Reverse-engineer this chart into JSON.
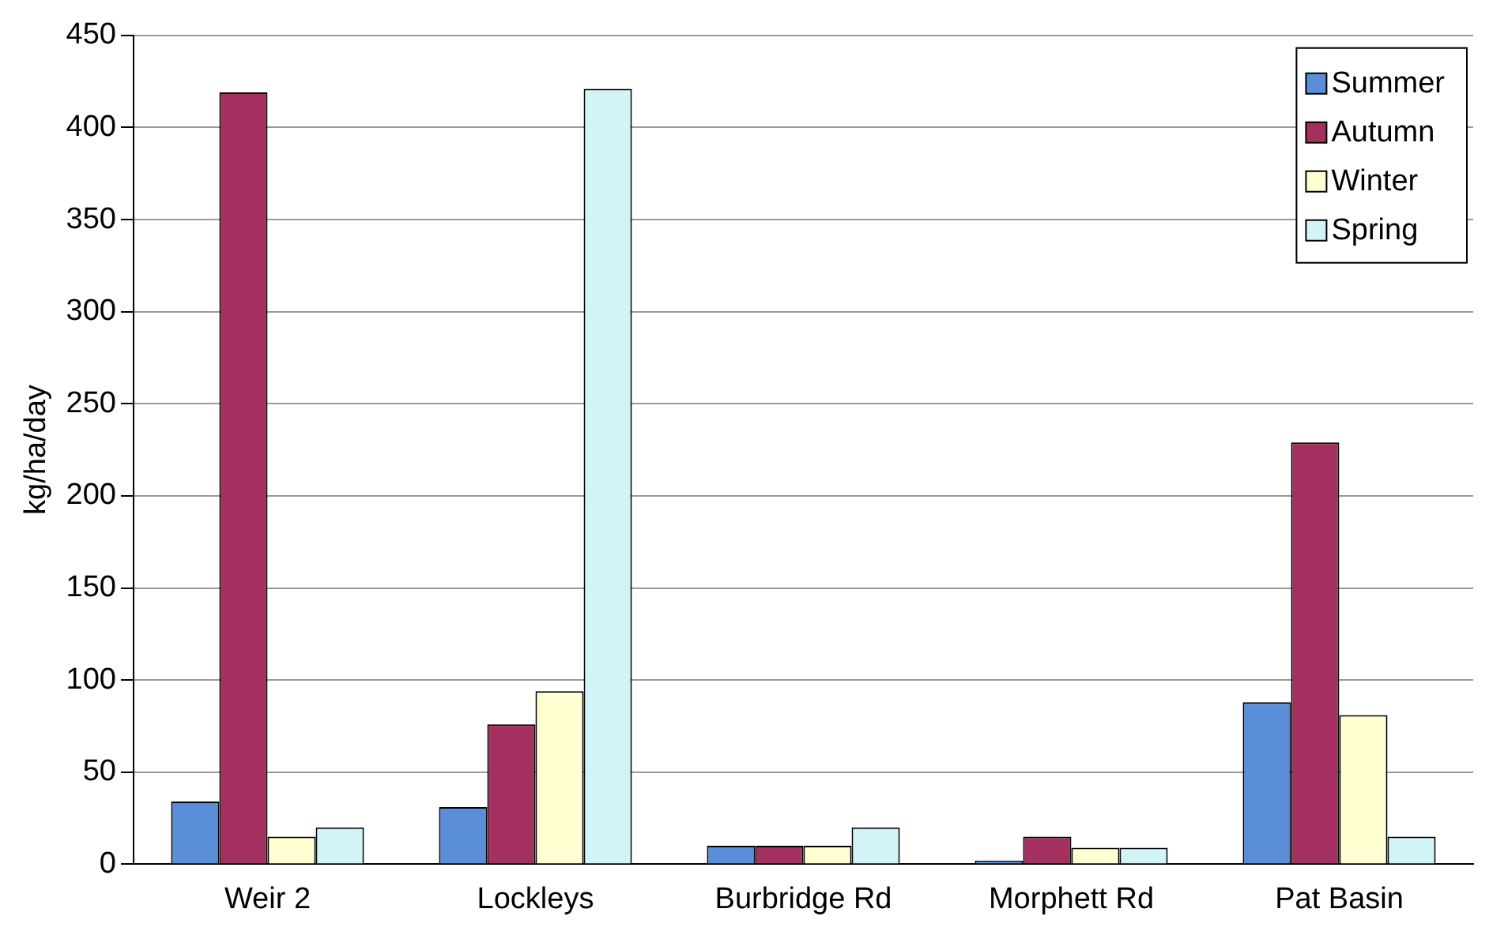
{
  "chart_data": {
    "type": "bar",
    "ylabel": "kg/ha/day",
    "categories": [
      "Weir 2",
      "Lockleys",
      "Burbridge Rd",
      "Morphett Rd",
      "Pat Basin"
    ],
    "series": [
      {
        "name": "Summer",
        "color": "#5b8ed8",
        "values": [
          34,
          31,
          10,
          2,
          88
        ]
      },
      {
        "name": "Autumn",
        "color": "#a3305e",
        "values": [
          419,
          76,
          10,
          15,
          229
        ]
      },
      {
        "name": "Winter",
        "color": "#ffffd2",
        "values": [
          15,
          94,
          10,
          9,
          81
        ]
      },
      {
        "name": "Spring",
        "color": "#d2f4f8",
        "values": [
          20,
          421,
          20,
          9,
          15
        ]
      }
    ],
    "ylim": [
      0,
      450
    ],
    "yticks": [
      0,
      50,
      100,
      150,
      200,
      250,
      300,
      350,
      400,
      450
    ],
    "grid": "y",
    "legend": "top right"
  }
}
